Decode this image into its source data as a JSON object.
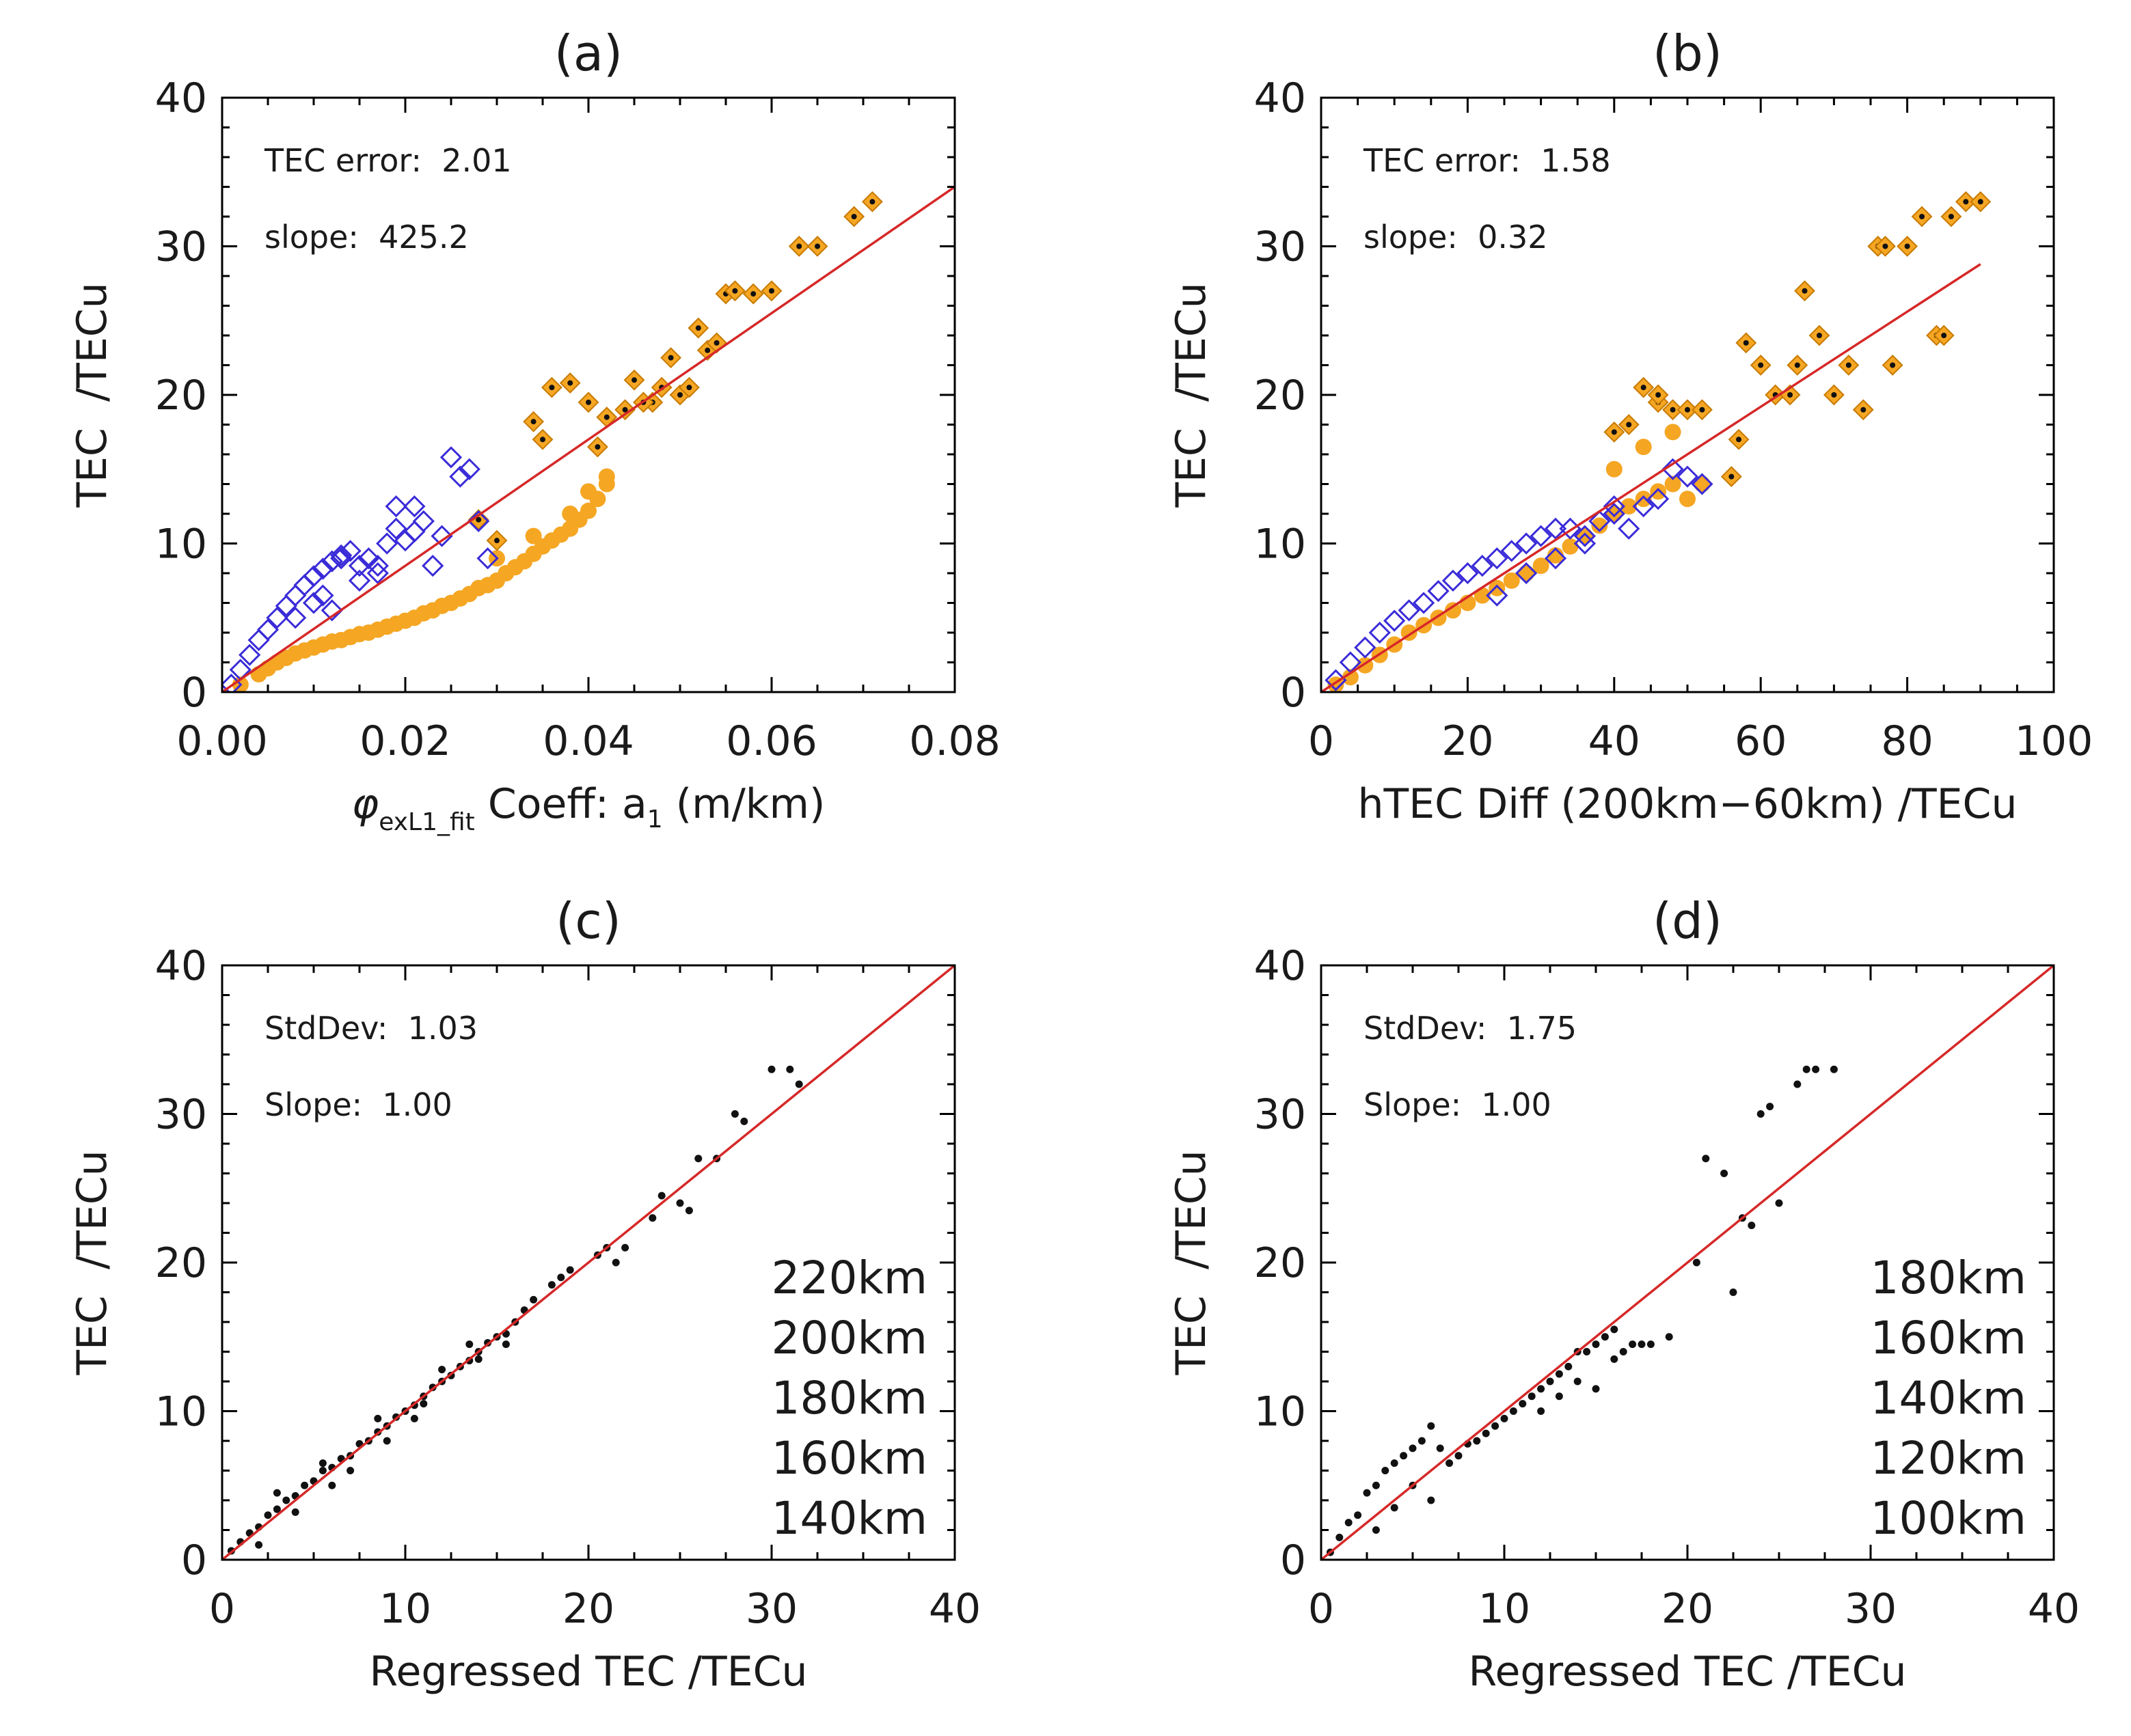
{
  "colors": {
    "fit_line": "#d62828",
    "orange_marker": "#f5a623",
    "blue_marker": "#3a2bd8",
    "black_marker": "#111111"
  },
  "chart_data": [
    {
      "id": "a",
      "type": "scatter",
      "title": "(a)",
      "xlabel_parts": [
        "φ",
        "exL1_fit",
        " Coeff: a",
        "1",
        " (m/km)"
      ],
      "ylabel": "TEC  /TECu",
      "xlim": [
        0,
        0.08
      ],
      "ylim": [
        0,
        40
      ],
      "xticks": [
        0,
        0.02,
        0.04,
        0.06,
        0.08
      ],
      "xtick_labels": [
        "0.00",
        "0.02",
        "0.04",
        "0.06",
        "0.08"
      ],
      "yticks": [
        0,
        10,
        20,
        30,
        40
      ],
      "ytick_labels": [
        "0",
        "10",
        "20",
        "30",
        "40"
      ],
      "annotations": [
        "TEC error:  2.01",
        "slope:  425.2"
      ],
      "fit_line": {
        "x": [
          0,
          0.08
        ],
        "y": [
          0,
          34.0
        ]
      },
      "series": [
        {
          "name": "orange",
          "style": "orange-filled",
          "x": [
            0.002,
            0.004,
            0.005,
            0.006,
            0.007,
            0.008,
            0.009,
            0.01,
            0.011,
            0.012,
            0.013,
            0.014,
            0.015,
            0.016,
            0.017,
            0.018,
            0.019,
            0.02,
            0.021,
            0.022,
            0.023,
            0.024,
            0.025,
            0.026,
            0.027,
            0.028,
            0.029,
            0.03,
            0.031,
            0.032,
            0.033,
            0.034,
            0.035,
            0.036,
            0.037,
            0.038,
            0.039,
            0.04,
            0.041,
            0.042,
            0.03,
            0.034,
            0.038,
            0.04,
            0.042
          ],
          "y": [
            0.5,
            1.2,
            1.6,
            2.0,
            2.3,
            2.6,
            2.8,
            3.0,
            3.2,
            3.4,
            3.5,
            3.7,
            3.9,
            4.0,
            4.2,
            4.4,
            4.6,
            4.8,
            5.0,
            5.3,
            5.5,
            5.8,
            6.0,
            6.3,
            6.6,
            7.0,
            7.2,
            7.5,
            8.0,
            8.4,
            8.8,
            9.3,
            9.8,
            10.2,
            10.6,
            11.0,
            11.6,
            12.2,
            13.0,
            14.0,
            9.0,
            10.5,
            12.0,
            13.5,
            14.5
          ]
        },
        {
          "name": "orange-diamond",
          "style": "orange-diamond",
          "x": [
            0.028,
            0.03,
            0.034,
            0.036,
            0.038,
            0.04,
            0.042,
            0.044,
            0.045,
            0.047,
            0.048,
            0.049,
            0.05,
            0.051,
            0.052,
            0.053,
            0.054,
            0.055,
            0.056,
            0.058,
            0.06,
            0.063,
            0.065,
            0.069,
            0.071,
            0.035,
            0.041,
            0.046
          ],
          "y": [
            11.6,
            10.2,
            18.2,
            20.5,
            20.8,
            19.5,
            18.5,
            19.0,
            21.0,
            19.5,
            20.5,
            22.5,
            20.0,
            20.5,
            24.5,
            23.0,
            23.5,
            26.8,
            27.0,
            26.8,
            27.0,
            30.0,
            30.0,
            32.0,
            33.0,
            17.0,
            16.5,
            19.5
          ]
        },
        {
          "name": "blue",
          "style": "blue-diamond",
          "x": [
            0.001,
            0.002,
            0.003,
            0.004,
            0.005,
            0.006,
            0.007,
            0.008,
            0.009,
            0.01,
            0.011,
            0.012,
            0.013,
            0.014,
            0.015,
            0.016,
            0.017,
            0.018,
            0.019,
            0.02,
            0.021,
            0.022,
            0.023,
            0.024,
            0.025,
            0.026,
            0.027,
            0.011,
            0.012,
            0.013,
            0.015,
            0.017,
            0.008,
            0.01,
            0.028,
            0.029,
            0.019,
            0.021
          ],
          "y": [
            0.5,
            1.5,
            2.5,
            3.5,
            4.2,
            5.0,
            5.8,
            6.5,
            7.2,
            7.8,
            8.3,
            8.8,
            9.2,
            9.5,
            8.5,
            9.0,
            8.0,
            10.0,
            11.0,
            10.2,
            12.5,
            11.5,
            8.5,
            10.5,
            15.8,
            14.5,
            15.0,
            6.5,
            5.5,
            9.0,
            7.5,
            8.5,
            5.0,
            6.0,
            11.5,
            9.0,
            12.5,
            10.8
          ]
        }
      ]
    },
    {
      "id": "b",
      "type": "scatter",
      "title": "(b)",
      "xlabel": "hTEC Diff (200km−60km) /TECu",
      "ylabel": "TEC  /TECu",
      "xlim": [
        0,
        100
      ],
      "ylim": [
        0,
        40
      ],
      "xticks": [
        0,
        20,
        40,
        60,
        80,
        100
      ],
      "xtick_labels": [
        "0",
        "20",
        "40",
        "60",
        "80",
        "100"
      ],
      "yticks": [
        0,
        10,
        20,
        30,
        40
      ],
      "ytick_labels": [
        "0",
        "10",
        "20",
        "30",
        "40"
      ],
      "annotations": [
        "TEC error:  1.58",
        "slope:  0.32"
      ],
      "fit_line": {
        "x": [
          0,
          90
        ],
        "y": [
          0,
          28.8
        ]
      },
      "series": [
        {
          "name": "orange",
          "style": "orange-filled",
          "x": [
            2,
            4,
            6,
            8,
            10,
            12,
            14,
            16,
            18,
            20,
            22,
            24,
            26,
            28,
            30,
            32,
            34,
            36,
            38,
            40,
            42,
            44,
            46,
            48,
            50,
            52,
            40,
            44,
            48
          ],
          "y": [
            0.5,
            1.0,
            1.8,
            2.5,
            3.2,
            4.0,
            4.5,
            5.0,
            5.5,
            6.0,
            6.5,
            7.0,
            7.5,
            8.0,
            8.5,
            9.2,
            9.8,
            10.5,
            11.2,
            12.0,
            12.5,
            13.0,
            13.5,
            14.0,
            13.0,
            14.0,
            15.0,
            16.5,
            17.5
          ]
        },
        {
          "name": "orange-diamond",
          "style": "orange-diamond",
          "x": [
            40,
            42,
            44,
            46,
            48,
            50,
            52,
            56,
            58,
            60,
            62,
            64,
            65,
            66,
            68,
            70,
            72,
            74,
            76,
            77,
            78,
            80,
            82,
            84,
            85,
            86,
            88,
            90,
            46,
            57
          ],
          "y": [
            17.5,
            18.0,
            20.5,
            19.5,
            19.0,
            19.0,
            19.0,
            14.5,
            23.5,
            22.0,
            20.0,
            20.0,
            22.0,
            27.0,
            24.0,
            20.0,
            22.0,
            19.0,
            30.0,
            30.0,
            22.0,
            30.0,
            32.0,
            24.0,
            24.0,
            32.0,
            33.0,
            33.0,
            20.0,
            17.0
          ]
        },
        {
          "name": "blue",
          "style": "blue-diamond",
          "x": [
            2,
            4,
            6,
            8,
            10,
            12,
            14,
            16,
            18,
            20,
            22,
            24,
            26,
            28,
            30,
            32,
            34,
            36,
            38,
            40,
            42,
            44,
            46,
            48,
            50,
            52,
            24,
            28,
            32,
            36,
            40
          ],
          "y": [
            0.8,
            2.0,
            3.0,
            4.0,
            4.8,
            5.5,
            6.0,
            6.8,
            7.5,
            8.0,
            8.5,
            9.0,
            9.5,
            10.0,
            10.5,
            11.0,
            11.0,
            10.5,
            11.5,
            12.0,
            11.0,
            12.5,
            13.0,
            15.0,
            14.5,
            14.0,
            6.5,
            8.0,
            9.0,
            10.0,
            12.5
          ]
        }
      ]
    },
    {
      "id": "c",
      "type": "scatter",
      "title": "(c)",
      "xlabel": "Regressed TEC /TECu",
      "ylabel": "TEC  /TECu",
      "xlim": [
        0,
        40
      ],
      "ylim": [
        0,
        40
      ],
      "xticks": [
        0,
        10,
        20,
        30,
        40
      ],
      "xtick_labels": [
        "0",
        "10",
        "20",
        "30",
        "40"
      ],
      "yticks": [
        0,
        10,
        20,
        30,
        40
      ],
      "ytick_labels": [
        "0",
        "10",
        "20",
        "30",
        "40"
      ],
      "annotations": [
        "StdDev:  1.03",
        "Slope:  1.00"
      ],
      "legend_text": [
        "220km",
        "200km",
        "180km",
        "160km",
        "140km"
      ],
      "fit_line": {
        "x": [
          0,
          40
        ],
        "y": [
          0,
          40
        ]
      },
      "series": [
        {
          "name": "black",
          "style": "black-dot",
          "x": [
            0.5,
            1.0,
            1.5,
            2.0,
            2.5,
            3.0,
            3.5,
            4.0,
            4.5,
            5.0,
            5.5,
            6.0,
            6.5,
            7.0,
            7.5,
            8.0,
            8.5,
            9.0,
            9.5,
            10.0,
            10.5,
            11.0,
            11.5,
            12.0,
            12.5,
            13.0,
            13.5,
            14.0,
            14.5,
            15.0,
            15.5,
            16.0,
            16.5,
            17.0,
            18.0,
            18.5,
            19.0,
            20.5,
            21.0,
            21.5,
            22.0,
            23.5,
            24.0,
            25.0,
            25.5,
            26.0,
            27.0,
            28.0,
            28.5,
            30.0,
            31.0,
            31.5,
            3.0,
            4.0,
            5.5,
            7.0,
            8.5,
            10.5,
            12.0,
            13.5,
            2.0,
            6.0,
            9.0,
            11.0,
            14.0,
            15.5
          ],
          "y": [
            0.6,
            1.2,
            1.8,
            2.2,
            3.0,
            3.4,
            4.0,
            4.3,
            5.0,
            5.3,
            6.0,
            6.2,
            6.8,
            7.0,
            7.8,
            8.0,
            8.6,
            9.0,
            9.6,
            10.0,
            10.4,
            11.0,
            11.6,
            12.0,
            12.4,
            13.0,
            13.4,
            14.0,
            14.6,
            15.0,
            15.2,
            16.0,
            16.8,
            17.5,
            18.5,
            19.0,
            19.5,
            20.5,
            21.0,
            20.0,
            21.0,
            23.0,
            24.5,
            24.0,
            23.5,
            27.0,
            27.0,
            30.0,
            29.5,
            33.0,
            33.0,
            32.0,
            4.5,
            3.2,
            6.5,
            6.0,
            9.5,
            9.5,
            12.8,
            14.5,
            1.0,
            5.0,
            8.0,
            10.5,
            13.5,
            14.5
          ]
        }
      ]
    },
    {
      "id": "d",
      "type": "scatter",
      "title": "(d)",
      "xlabel": "Regressed TEC /TECu",
      "ylabel": "TEC  /TECu",
      "xlim": [
        0,
        40
      ],
      "ylim": [
        0,
        40
      ],
      "xticks": [
        0,
        10,
        20,
        30,
        40
      ],
      "xtick_labels": [
        "0",
        "10",
        "20",
        "30",
        "40"
      ],
      "yticks": [
        0,
        10,
        20,
        30,
        40
      ],
      "ytick_labels": [
        "0",
        "10",
        "20",
        "30",
        "40"
      ],
      "annotations": [
        "StdDev:  1.75",
        "Slope:  1.00"
      ],
      "legend_text": [
        "180km",
        "160km",
        "140km",
        "120km",
        "100km"
      ],
      "fit_line": {
        "x": [
          0,
          40
        ],
        "y": [
          0,
          40
        ]
      },
      "series": [
        {
          "name": "black",
          "style": "black-dot",
          "x": [
            0.5,
            1.0,
            1.5,
            2.0,
            2.5,
            3.0,
            3.5,
            4.0,
            4.5,
            5.0,
            5.5,
            6.0,
            6.5,
            7.0,
            7.5,
            8.0,
            8.5,
            9.0,
            9.5,
            10.0,
            10.5,
            11.0,
            11.5,
            12.0,
            12.5,
            13.0,
            13.5,
            14.0,
            14.5,
            15.0,
            15.5,
            16.0,
            16.5,
            17.0,
            17.5,
            18.0,
            19.0,
            20.5,
            21.0,
            22.0,
            22.5,
            23.0,
            23.5,
            24.0,
            24.5,
            25.0,
            26.0,
            26.5,
            27.0,
            28.0,
            3.0,
            4.0,
            5.0,
            6.0,
            12.0,
            13.0,
            14.0,
            15.0,
            16.0
          ],
          "y": [
            0.5,
            1.5,
            2.5,
            3.0,
            4.5,
            5.0,
            6.0,
            6.5,
            7.0,
            7.5,
            8.0,
            9.0,
            7.5,
            6.5,
            7.0,
            7.8,
            8.0,
            8.5,
            9.0,
            9.5,
            10.0,
            10.5,
            11.0,
            11.5,
            12.0,
            12.5,
            13.0,
            14.0,
            14.0,
            14.5,
            15.0,
            15.5,
            14.0,
            14.5,
            14.5,
            14.5,
            15.0,
            20.0,
            27.0,
            26.0,
            18.0,
            23.0,
            22.5,
            30.0,
            30.5,
            24.0,
            32.0,
            33.0,
            33.0,
            33.0,
            2.0,
            3.5,
            5.0,
            4.0,
            10.0,
            11.0,
            12.0,
            11.5,
            13.5
          ]
        }
      ]
    }
  ]
}
